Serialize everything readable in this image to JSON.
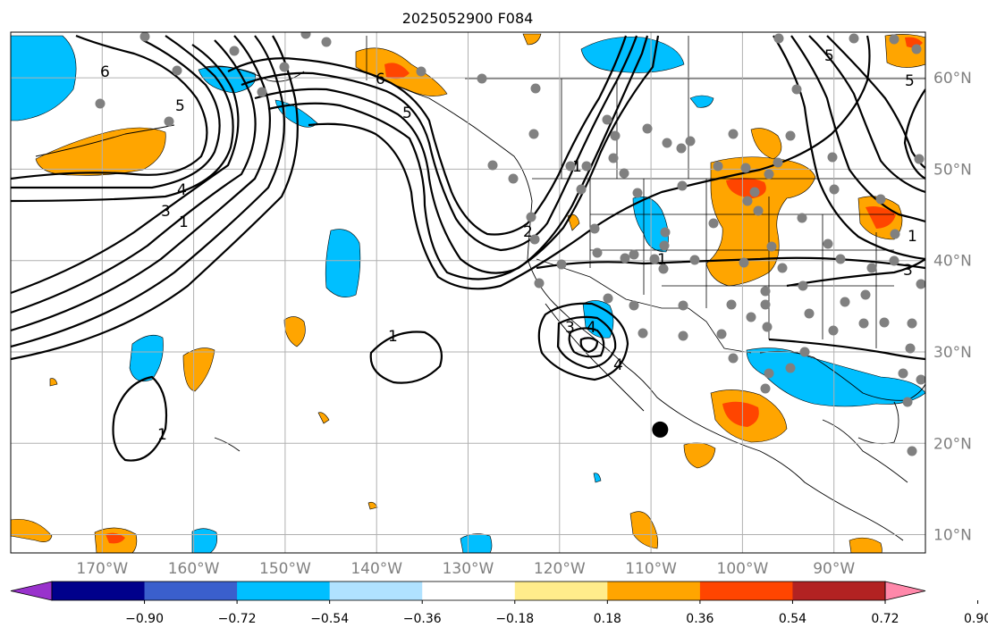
{
  "title": "2025052900 F084",
  "map": {
    "lon_range": [
      -180,
      -80
    ],
    "lat_range": [
      8,
      65
    ],
    "lon_ticks": [
      {
        "value": -170,
        "label": "170°W"
      },
      {
        "value": -160,
        "label": "160°W"
      },
      {
        "value": -150,
        "label": "150°W"
      },
      {
        "value": -140,
        "label": "140°W"
      },
      {
        "value": -130,
        "label": "130°W"
      },
      {
        "value": -120,
        "label": "120°W"
      },
      {
        "value": -110,
        "label": "110°W"
      },
      {
        "value": -100,
        "label": "100°W"
      },
      {
        "value": -90,
        "label": "90°W"
      }
    ],
    "lat_ticks": [
      {
        "value": 60,
        "label": "60°N"
      },
      {
        "value": 50,
        "label": "50°N"
      },
      {
        "value": 40,
        "label": "40°N"
      },
      {
        "value": 30,
        "label": "30°N"
      },
      {
        "value": 20,
        "label": "20°N"
      },
      {
        "value": 10,
        "label": "10°N"
      }
    ],
    "marked_point": {
      "lon": -109,
      "lat": 21.5
    }
  },
  "colorbar": {
    "colors": [
      "#9932CC",
      "#00008B",
      "#3A5FCD",
      "#00BFFF",
      "#B0E2FF",
      "#FFFFFF",
      "#FFEC8B",
      "#FFA500",
      "#FF4500",
      "#B22222",
      "#FF88AA"
    ],
    "tick_labels": [
      "−0.90",
      "−0.72",
      "−0.54",
      "−0.36",
      "−0.18",
      "0.18",
      "0.36",
      "0.54",
      "0.72",
      "0.90"
    ]
  },
  "contour_labels": [
    "6",
    "5",
    "4",
    "3",
    "1",
    "6",
    "5",
    "2",
    "1",
    "1",
    "1",
    "3",
    "4",
    "4",
    "5",
    "5",
    "1",
    "1",
    "3"
  ]
}
